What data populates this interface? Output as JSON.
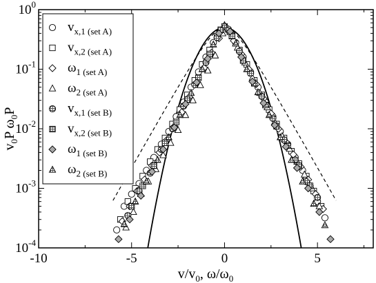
{
  "chart_data": {
    "type": "scatter",
    "xlabel": "v/v_0, ω/ω_0",
    "ylabel": "v_0P  ω_0P",
    "xlim": [
      -10,
      8
    ],
    "ylim": [
      0.0001,
      1
    ],
    "y_scale": "log",
    "x_ticks": [
      -10,
      -5,
      0,
      5
    ],
    "y_ticks": [
      {
        "value": 1,
        "label_base": "10",
        "label_exp": "0"
      },
      {
        "value": 0.1,
        "label_base": "10",
        "label_exp": "-1"
      },
      {
        "value": 0.01,
        "label_base": "10",
        "label_exp": "-2"
      },
      {
        "value": 0.001,
        "label_base": "10",
        "label_exp": "-3"
      },
      {
        "value": 0.0001,
        "label_base": "10",
        "label_exp": "-4"
      }
    ],
    "grid": false,
    "legend_position": "top-left",
    "series": [
      {
        "name": "v_{x,1} (set A)",
        "symbol": "circle",
        "x": [
          -5.8,
          -5.4,
          -5.0,
          -4.6,
          -4.2,
          -3.8,
          -3.4,
          -3.0,
          -2.6,
          -2.2,
          -1.8,
          -1.4,
          -1.0,
          -0.6,
          -0.2,
          0.2,
          0.6,
          1.0,
          1.4,
          1.8,
          2.2,
          2.6,
          3.0,
          3.4,
          3.8,
          4.2,
          4.6,
          5.0,
          5.4
        ],
        "y": [
          0.0002,
          0.0005,
          0.0008,
          0.0012,
          0.002,
          0.0033,
          0.0055,
          0.009,
          0.016,
          0.028,
          0.05,
          0.09,
          0.16,
          0.28,
          0.45,
          0.45,
          0.28,
          0.16,
          0.09,
          0.05,
          0.028,
          0.016,
          0.009,
          0.0055,
          0.0033,
          0.002,
          0.0011,
          0.0006,
          0.00032
        ]
      },
      {
        "name": "v_{x,2} (set A)",
        "symbol": "square",
        "x": [
          -5.6,
          -5.2,
          -4.8,
          -4.4,
          -4.0,
          -3.6,
          -3.2,
          -2.8,
          -2.4,
          -2.0,
          -1.6,
          -1.2,
          -0.8,
          -0.4,
          0.0,
          0.4,
          0.8,
          1.2,
          1.6,
          2.0,
          2.4,
          2.8,
          3.2,
          3.6,
          4.0,
          4.4,
          4.8,
          5.2
        ],
        "y": [
          0.0003,
          0.0006,
          0.001,
          0.0016,
          0.0028,
          0.0045,
          0.007,
          0.012,
          0.021,
          0.037,
          0.065,
          0.12,
          0.21,
          0.36,
          0.52,
          0.36,
          0.21,
          0.12,
          0.065,
          0.037,
          0.021,
          0.012,
          0.007,
          0.0042,
          0.0026,
          0.0016,
          0.0009,
          0.0005
        ]
      },
      {
        "name": "ω_1 (set A)",
        "symbol": "diamond",
        "x": [
          -5.5,
          -5.1,
          -4.7,
          -4.3,
          -3.9,
          -3.5,
          -3.1,
          -2.7,
          -2.3,
          -1.9,
          -1.5,
          -1.1,
          -0.7,
          -0.3,
          0.1,
          0.5,
          0.9,
          1.3,
          1.7,
          2.1,
          2.5,
          2.9,
          3.3,
          3.7,
          4.1,
          4.5,
          4.9,
          5.3
        ],
        "y": [
          0.00028,
          0.0005,
          0.0009,
          0.0014,
          0.0024,
          0.004,
          0.0065,
          0.011,
          0.019,
          0.034,
          0.06,
          0.105,
          0.19,
          0.33,
          0.5,
          0.3,
          0.18,
          0.1,
          0.056,
          0.032,
          0.018,
          0.01,
          0.006,
          0.0037,
          0.0023,
          0.0014,
          0.0008,
          0.00045
        ]
      },
      {
        "name": "ω_2 (set A)",
        "symbol": "triangle",
        "x": [
          -5.3,
          -4.9,
          -4.5,
          -4.1,
          -3.7,
          -3.3,
          -2.9,
          -2.5,
          -2.1,
          -1.7,
          -1.3,
          -0.9,
          -0.5,
          -0.1,
          0.3,
          0.7,
          1.1,
          1.5,
          1.9,
          2.3,
          2.7,
          3.1,
          3.5,
          3.9,
          4.3,
          4.7,
          5.1
        ],
        "y": [
          0.00022,
          0.0004,
          0.0008,
          0.0013,
          0.0021,
          0.0036,
          0.0058,
          0.0095,
          0.017,
          0.03,
          0.054,
          0.095,
          0.17,
          0.4,
          0.42,
          0.23,
          0.13,
          0.072,
          0.04,
          0.023,
          0.013,
          0.0075,
          0.0046,
          0.0028,
          0.0017,
          0.001,
          0.0005
        ]
      },
      {
        "name": "v_{x,1} (set B)",
        "symbol": "circle-hatched",
        "x": [
          -5.2,
          -4.6,
          -4.0,
          -3.4,
          -2.8,
          -2.2,
          -1.6,
          -1.0,
          -0.4,
          0.2,
          0.8,
          1.4,
          2.0,
          2.6,
          3.2,
          3.8,
          4.4,
          5.0
        ],
        "y": [
          0.00035,
          0.0009,
          0.0018,
          0.0045,
          0.01,
          0.024,
          0.055,
          0.13,
          0.34,
          0.47,
          0.2,
          0.085,
          0.035,
          0.015,
          0.0065,
          0.003,
          0.0013,
          0.0007
        ]
      },
      {
        "name": "v_{x,2} (set B)",
        "symbol": "square-hatched",
        "x": [
          -5.0,
          -4.4,
          -3.8,
          -3.2,
          -2.6,
          -2.0,
          -1.4,
          -0.8,
          -0.2,
          0.4,
          1.0,
          1.6,
          2.2,
          2.8,
          3.4,
          4.0,
          4.6
        ],
        "y": [
          0.0005,
          0.0011,
          0.0024,
          0.0058,
          0.013,
          0.031,
          0.072,
          0.18,
          0.46,
          0.36,
          0.14,
          0.058,
          0.025,
          0.011,
          0.0052,
          0.0024,
          0.0011
        ]
      },
      {
        "name": "ω_1 (set B)",
        "symbol": "diamond-gray",
        "x": [
          -5.7,
          -5.1,
          -4.5,
          -3.9,
          -3.3,
          -2.7,
          -2.1,
          -1.5,
          -0.9,
          -0.3,
          0.3,
          0.9,
          1.5,
          2.1,
          2.7,
          3.3,
          3.9,
          4.5,
          5.1,
          5.7
        ],
        "y": [
          0.00014,
          0.0003,
          0.00075,
          0.0019,
          0.0045,
          0.0105,
          0.026,
          0.06,
          0.15,
          0.4,
          0.43,
          0.16,
          0.062,
          0.027,
          0.0115,
          0.005,
          0.0022,
          0.001,
          0.0004,
          0.00014
        ]
      },
      {
        "name": "ω_2 (set B)",
        "symbol": "triangle-hatched",
        "x": [
          -5.4,
          -4.8,
          -4.2,
          -3.6,
          -3.0,
          -2.4,
          -1.8,
          -1.2,
          -0.6,
          0.0,
          0.6,
          1.2,
          1.8,
          2.4,
          3.0,
          3.6,
          4.2,
          4.8,
          5.4
        ],
        "y": [
          0.00025,
          0.0006,
          0.0013,
          0.003,
          0.0072,
          0.017,
          0.04,
          0.1,
          0.26,
          0.55,
          0.27,
          0.1,
          0.041,
          0.017,
          0.0072,
          0.003,
          0.0013,
          0.00055,
          0.00024
        ]
      }
    ],
    "curves": [
      {
        "style": "solid",
        "kind": "gaussian",
        "peak": 0.5,
        "width": 1.0,
        "x_range": [
          -4.2,
          4.2
        ]
      },
      {
        "style": "dashed",
        "kind": "exponential-core",
        "peak": 0.5,
        "x_range": [
          -6.0,
          6.0
        ]
      }
    ],
    "legend": [
      {
        "main": "v",
        "sub": "x,1",
        "set": "(set A)",
        "symbol": "circle"
      },
      {
        "main": "v",
        "sub": "x,2",
        "set": "(set A)",
        "symbol": "square"
      },
      {
        "main": "ω",
        "sub": "1",
        "set": "(set A)",
        "symbol": "diamond"
      },
      {
        "main": "ω",
        "sub": "2",
        "set": "(set A)",
        "symbol": "triangle"
      },
      {
        "main": "v",
        "sub": "x,1",
        "set": "(set B)",
        "symbol": "circle-hatched"
      },
      {
        "main": "v",
        "sub": "x,2",
        "set": "(set B)",
        "symbol": "square-hatched"
      },
      {
        "main": "ω",
        "sub": "1",
        "set": "(set B)",
        "symbol": "diamond-gray"
      },
      {
        "main": "ω",
        "sub": "2",
        "set": "(set B)",
        "symbol": "triangle-hatched"
      }
    ]
  }
}
